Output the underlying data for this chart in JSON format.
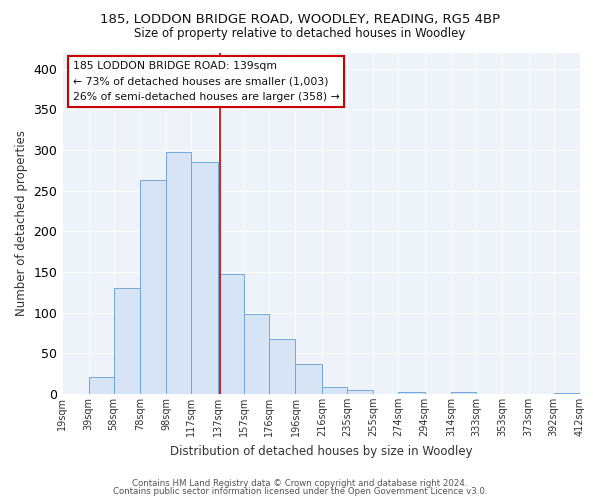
{
  "title": "185, LODDON BRIDGE ROAD, WOODLEY, READING, RG5 4BP",
  "subtitle": "Size of property relative to detached houses in Woodley",
  "xlabel": "Distribution of detached houses by size in Woodley",
  "ylabel": "Number of detached properties",
  "bar_color": "#d6e4f5",
  "bar_edge_color": "#6fa8dc",
  "background_color": "#ffffff",
  "plot_bg_color": "#eef2f9",
  "grid_color": "#ffffff",
  "bin_edges": [
    19,
    39,
    58,
    78,
    98,
    117,
    137,
    157,
    176,
    196,
    216,
    235,
    255,
    274,
    294,
    314,
    333,
    353,
    373,
    392,
    412
  ],
  "bin_labels": [
    "19sqm",
    "39sqm",
    "58sqm",
    "78sqm",
    "98sqm",
    "117sqm",
    "137sqm",
    "157sqm",
    "176sqm",
    "196sqm",
    "216sqm",
    "235sqm",
    "255sqm",
    "274sqm",
    "294sqm",
    "314sqm",
    "333sqm",
    "353sqm",
    "373sqm",
    "392sqm",
    "412sqm"
  ],
  "counts": [
    0,
    21,
    130,
    263,
    297,
    285,
    147,
    98,
    67,
    37,
    9,
    5,
    0,
    2,
    0,
    2,
    0,
    0,
    0,
    1
  ],
  "vline_x": 139,
  "vline_color": "#cc0000",
  "annotation_line1": "185 LODDON BRIDGE ROAD: 139sqm",
  "annotation_line2": "← 73% of detached houses are smaller (1,003)",
  "annotation_line3": "26% of semi-detached houses are larger (358) →",
  "footer_line1": "Contains HM Land Registry data © Crown copyright and database right 2024.",
  "footer_line2": "Contains public sector information licensed under the Open Government Licence v3.0.",
  "ylim": [
    0,
    420
  ],
  "yticks": [
    0,
    50,
    100,
    150,
    200,
    250,
    300,
    350,
    400
  ]
}
